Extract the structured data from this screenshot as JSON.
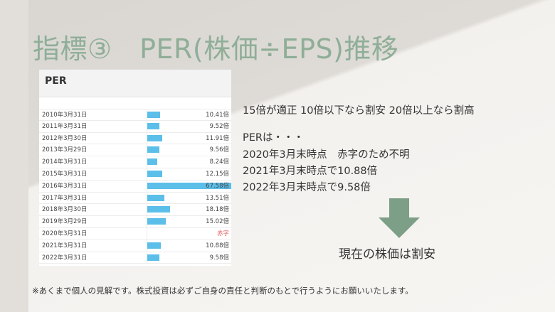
{
  "slide": {
    "title": "指標③　PER(株価÷EPS)推移"
  },
  "table": {
    "header": "PER",
    "rows": [
      {
        "date": "2010年3月31日",
        "value": 10.41,
        "label": "10.41倍"
      },
      {
        "date": "2011年3月31日",
        "value": 9.52,
        "label": "9.52倍"
      },
      {
        "date": "2012年3月30日",
        "value": 11.91,
        "label": "11.91倍"
      },
      {
        "date": "2013年3月29日",
        "value": 9.56,
        "label": "9.56倍"
      },
      {
        "date": "2014年3月31日",
        "value": 8.24,
        "label": "8.24倍"
      },
      {
        "date": "2015年3月31日",
        "value": 12.15,
        "label": "12.15倍"
      },
      {
        "date": "2016年3月31日",
        "value": 67.58,
        "label": "67.58倍"
      },
      {
        "date": "2017年3月31日",
        "value": 13.51,
        "label": "13.51倍"
      },
      {
        "date": "2018年3月30日",
        "value": 18.18,
        "label": "18.18倍"
      },
      {
        "date": "2019年3月29日",
        "value": 15.02,
        "label": "15.02倍"
      },
      {
        "date": "2020年3月31日",
        "value": null,
        "label": "赤字"
      },
      {
        "date": "2021年3月31日",
        "value": 10.88,
        "label": "10.88倍"
      },
      {
        "date": "2022年3月31日",
        "value": 9.58,
        "label": "9.58倍"
      }
    ]
  },
  "info": {
    "line1": "15倍が適正 10倍以下なら割安 20倍以上なら割高",
    "line2": "PERは・・・",
    "line3": "2020年3月末時点　赤字のため不明",
    "line4": "2021年3月末時点で10.88倍",
    "line5": "2022年3月末時点で9.58倍"
  },
  "result": "現在の株価は割安",
  "disclaimer": "※あくまで個人の見解です。株式投資は必ずご自身の責任と判断のもとで行うようにお願いいたします。",
  "colors": {
    "title": "#8fae98",
    "arrow": "#7d9f87",
    "bar": "#5bbfe9",
    "deficit": "#e35d5d"
  }
}
